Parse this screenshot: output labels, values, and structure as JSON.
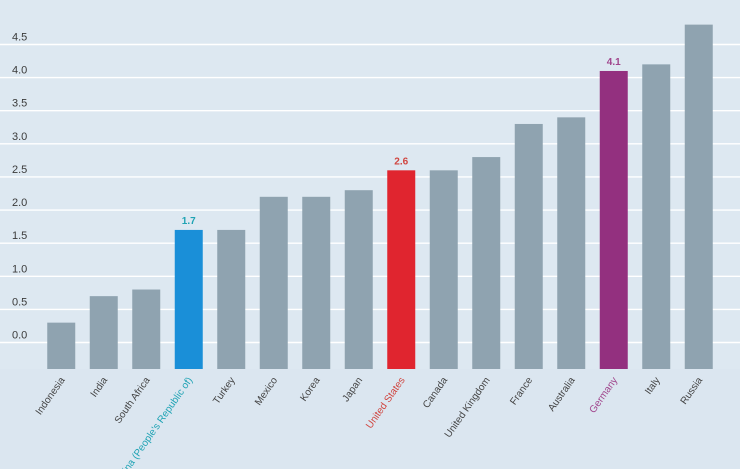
{
  "chart_data": {
    "type": "bar",
    "title": "",
    "xlabel": "",
    "ylabel": "",
    "ylim": [
      -0.4,
      4.9
    ],
    "yticks": [
      0.0,
      0.5,
      1.0,
      1.5,
      2.0,
      2.5,
      3.0,
      3.5,
      4.0,
      4.5
    ],
    "ytick_labels": [
      "0.0",
      "0.5",
      "1.0",
      "1.5",
      "2.0",
      "2.5",
      "3.0",
      "3.5",
      "4.0",
      "4.5"
    ],
    "grid": true,
    "categories": [
      "Indonesia",
      "India",
      "South Africa",
      "China (People's Republic of)",
      "Turkey",
      "Mexico",
      "Korea",
      "Japan",
      "United States",
      "Canada",
      "United Kingdom",
      "France",
      "Australia",
      "Germany",
      "Italy",
      "Russia"
    ],
    "values": [
      0.3,
      0.7,
      0.8,
      1.7,
      1.7,
      2.2,
      2.2,
      2.3,
      2.6,
      2.6,
      2.8,
      3.3,
      3.4,
      4.1,
      4.2,
      4.8
    ],
    "highlights": [
      {
        "category": "China (People's Republic of)",
        "color": "#1a8fd8",
        "label_color": "#1fa3b4",
        "data_label": "1.7"
      },
      {
        "category": "United States",
        "color": "#e0252f",
        "label_color": "#d0453f",
        "data_label": "2.6"
      },
      {
        "category": "Germany",
        "color": "#93307f",
        "label_color": "#a0458c",
        "data_label": "4.1"
      }
    ],
    "colors": {
      "default_bar": "#8fa3b0",
      "background": "#dde8f1",
      "gridline": "#ffffff",
      "axis_text": "#3a3a3a",
      "category_text": "#444444"
    }
  }
}
